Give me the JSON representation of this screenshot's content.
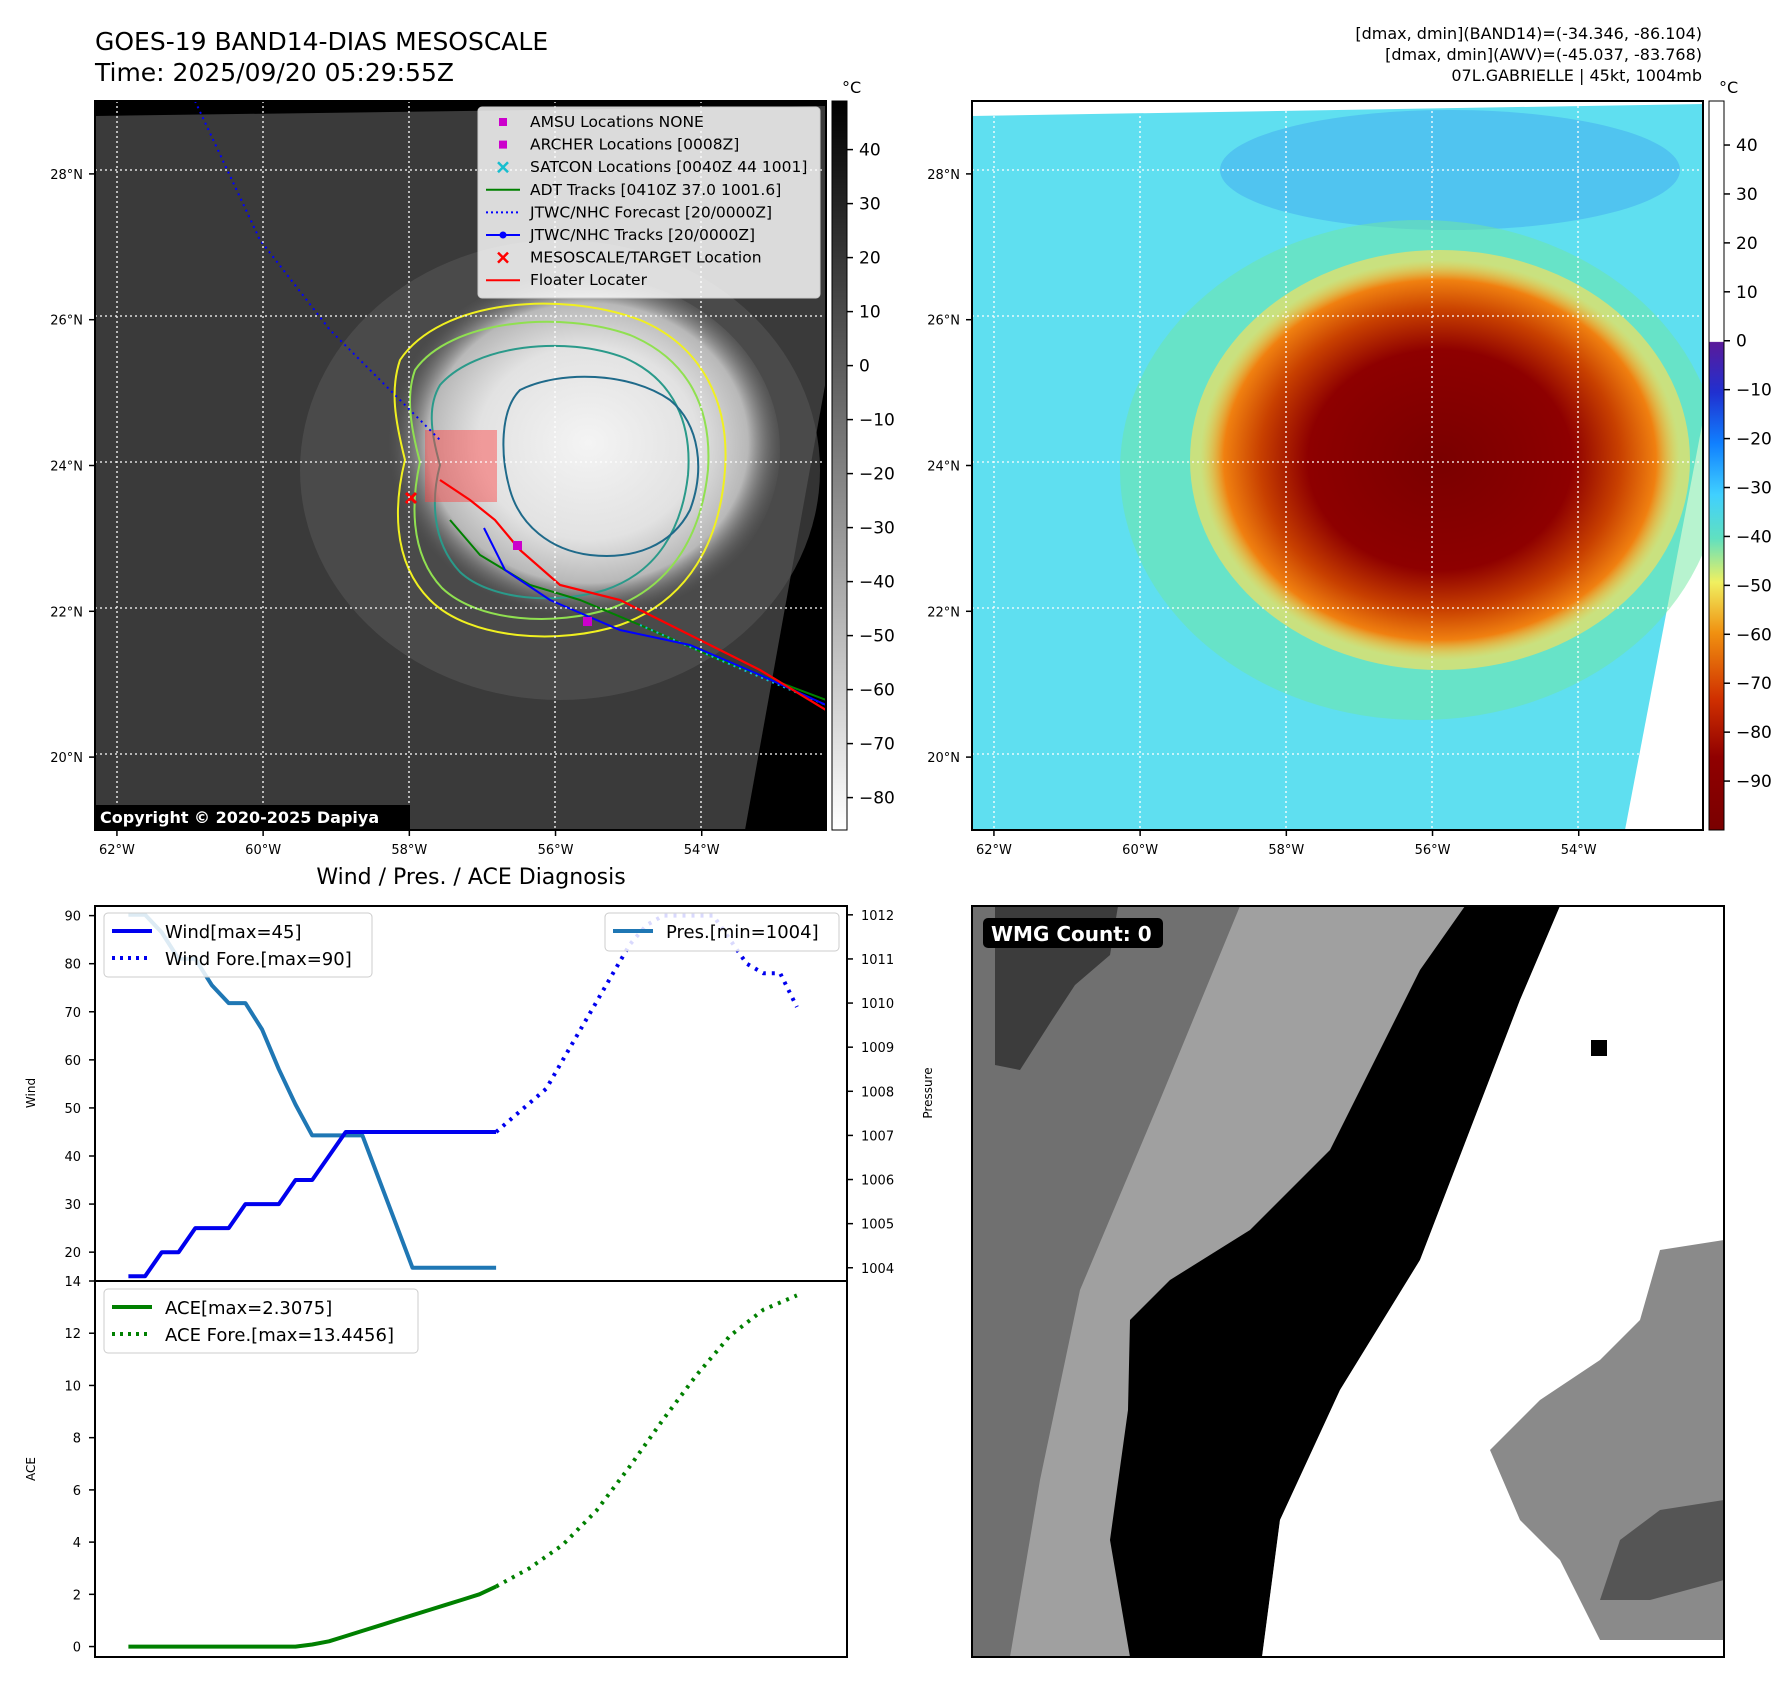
{
  "header": {
    "title_line1": "GOES-19 BAND14-DIAS MESOSCALE",
    "title_line2": "Time: 2025/09/20 05:29:55Z",
    "info_line1": "[dmax, dmin](BAND14)=(-34.346, -86.104)",
    "info_line2": "[dmax, dmin](AWV)=(-45.037, -83.768)",
    "info_line3": "07L.GABRIELLE | 45kt, 1004mb"
  },
  "map_axes": {
    "lon_labels": [
      "62°W",
      "60°W",
      "58°W",
      "56°W",
      "54°W"
    ],
    "lat_labels": [
      "28°N",
      "26°N",
      "24°N",
      "22°N",
      "20°N"
    ],
    "lon_values": [
      -62,
      -60,
      -58,
      -56,
      -54
    ],
    "lat_values": [
      28,
      26,
      24,
      22,
      20
    ],
    "lon_range": [
      -62.3,
      -52.3
    ],
    "lat_range": [
      19.0,
      29.0
    ]
  },
  "ir_panel": {
    "copyright": "Copyright © 2020-2025 Dapiya",
    "colorbar_unit": "°C",
    "colorbar_ticks": [
      "40",
      "30",
      "20",
      "10",
      "0",
      "−10",
      "−20",
      "−30",
      "−40",
      "−50",
      "−60",
      "−70",
      "−80"
    ],
    "colorbar_values": [
      40,
      30,
      20,
      10,
      0,
      -10,
      -20,
      -30,
      -40,
      -50,
      -60,
      -70,
      -80
    ],
    "colorbar_range": [
      -86,
      49
    ],
    "legend": [
      {
        "label": "AMSU Locations NONE",
        "marker": "square",
        "color": "#cc00cc"
      },
      {
        "label": "ARCHER Locations [0008Z]",
        "marker": "square",
        "color": "#cc00cc"
      },
      {
        "label": "SATCON Locations [0040Z 44 1001]",
        "marker": "x",
        "color": "#17becf"
      },
      {
        "label": "ADT Tracks [0410Z 37.0 1001.6]",
        "marker": "line",
        "color": "#008000"
      },
      {
        "label": "JTWC/NHC Forecast [20/0000Z]",
        "marker": "dotted",
        "color": "#0000ff"
      },
      {
        "label": "JTWC/NHC Tracks [20/0000Z]",
        "marker": "line-dot",
        "color": "#0000ff"
      },
      {
        "label": "MESOSCALE/TARGET Location",
        "marker": "x",
        "color": "#ff0000"
      },
      {
        "label": "Floater Locater",
        "marker": "line",
        "color": "#ff0000"
      }
    ]
  },
  "awv_panel": {
    "colorbar_unit": "°C",
    "colorbar_ticks": [
      "40",
      "30",
      "20",
      "10",
      "0",
      "−10",
      "−20",
      "−30",
      "−40",
      "−50",
      "−60",
      "−70",
      "−80",
      "−90"
    ],
    "colorbar_values": [
      40,
      30,
      20,
      10,
      0,
      -10,
      -20,
      -30,
      -40,
      -50,
      -60,
      -70,
      -80,
      -90
    ],
    "colorbar_range": [
      -100,
      49
    ]
  },
  "diagnosis": {
    "title": "Wind / Pres. / ACE Diagnosis",
    "wind_ylabel": "Wind",
    "pres_ylabel": "Pressure",
    "ace_ylabel": "ACE",
    "wind_legend": [
      "Wind[max=45]",
      "Wind Fore.[max=90]"
    ],
    "pres_legend": [
      "Pres.[min=1004]"
    ],
    "ace_legend": [
      "ACE[max=2.3075]",
      "ACE Fore.[max=13.4456]"
    ],
    "wind_ticks": [
      "20",
      "30",
      "40",
      "50",
      "60",
      "70",
      "80",
      "90"
    ],
    "pres_ticks": [
      "1004",
      "1005",
      "1006",
      "1007",
      "1008",
      "1009",
      "1010",
      "1011",
      "1012"
    ],
    "ace_ticks": [
      "0",
      "2",
      "4",
      "6",
      "8",
      "10",
      "12",
      "14"
    ]
  },
  "wmg_panel": {
    "label": "WMG Count: 0"
  },
  "colors": {
    "wind": "#0000ee",
    "pres": "#1f77b4",
    "ace": "#008000"
  },
  "chart_data": [
    {
      "type": "line",
      "name": "wind",
      "x": [
        0,
        1,
        2,
        3,
        4,
        5,
        6,
        7,
        8,
        9,
        10,
        11,
        12,
        13,
        14,
        15,
        16,
        17,
        18,
        19,
        20,
        21,
        22
      ],
      "series": [
        {
          "name": "Wind[max=45]",
          "values": [
            15,
            15,
            20,
            20,
            25,
            25,
            25,
            30,
            30,
            30,
            35,
            35,
            40,
            45,
            45,
            45,
            45,
            45,
            45,
            45,
            45,
            45,
            45
          ]
        }
      ],
      "ylim": [
        14,
        92
      ]
    },
    {
      "type": "line",
      "name": "wind forecast",
      "x": [
        22,
        23,
        24,
        25,
        26,
        27,
        28,
        29,
        30,
        31,
        32,
        33,
        34,
        35,
        36,
        37,
        38,
        39,
        40
      ],
      "series": [
        {
          "name": "Wind Fore.[max=90]",
          "values": [
            45,
            48,
            51,
            54,
            60,
            66,
            72,
            78,
            84,
            88,
            90,
            90,
            90,
            90,
            85,
            80,
            78,
            78,
            71
          ]
        }
      ],
      "ylim": [
        14,
        92
      ]
    },
    {
      "type": "line",
      "name": "pressure",
      "x": [
        0,
        1,
        2,
        3,
        4,
        5,
        6,
        7,
        8,
        9,
        10,
        11,
        12,
        13,
        14,
        15,
        16,
        17,
        18,
        19,
        20,
        21,
        22
      ],
      "series": [
        {
          "name": "Pres.[min=1004]",
          "values": [
            1012,
            1012,
            1011.6,
            1011,
            1011,
            1010.4,
            1010,
            1010,
            1009.4,
            1008.5,
            1007.7,
            1007,
            1007,
            1007,
            1007,
            1006,
            1005,
            1004,
            1004,
            1004,
            1004,
            1004,
            1004
          ]
        }
      ],
      "ylim": [
        1003.7,
        1012.2
      ]
    },
    {
      "type": "line",
      "name": "ace",
      "x": [
        0,
        1,
        2,
        3,
        4,
        5,
        6,
        7,
        8,
        9,
        10,
        11,
        12,
        13,
        14,
        15,
        16,
        17,
        18,
        19,
        20,
        21,
        22
      ],
      "series": [
        {
          "name": "ACE[max=2.3075]",
          "values": [
            0,
            0,
            0,
            0,
            0,
            0,
            0,
            0,
            0,
            0,
            0,
            0.08,
            0.2,
            0.4,
            0.6,
            0.8,
            1.0,
            1.2,
            1.4,
            1.6,
            1.8,
            2.0,
            2.3
          ]
        }
      ],
      "ylim": [
        -0.4,
        14
      ]
    },
    {
      "type": "line",
      "name": "ace forecast",
      "x": [
        22,
        24,
        26,
        28,
        30,
        32,
        34,
        36,
        38,
        40
      ],
      "series": [
        {
          "name": "ACE Fore.[max=13.4456]",
          "values": [
            2.3,
            3.0,
            3.9,
            5.2,
            6.9,
            8.7,
            10.4,
            11.9,
            12.9,
            13.45
          ]
        }
      ],
      "ylim": [
        -0.4,
        14
      ]
    }
  ]
}
